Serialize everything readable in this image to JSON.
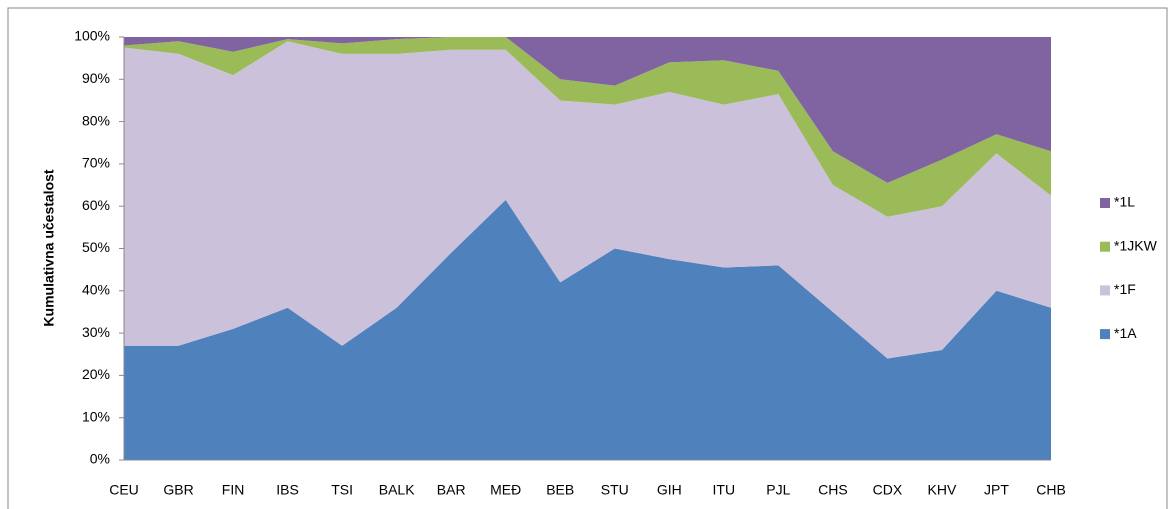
{
  "chart_data": {
    "type": "stacked_area",
    "y_axis_label": "Kumulativna učestalost",
    "categories": [
      "CEU",
      "GBR",
      "FIN",
      "IBS",
      "TSI",
      "BALK",
      "BAR",
      "MEĐ",
      "BEB",
      "STU",
      "GIH",
      "ITU",
      "PJL",
      "CHS",
      "CDX",
      "KHV",
      "JPT",
      "CHB"
    ],
    "series": [
      {
        "name": "*1A",
        "color": "#4f81bd",
        "values": [
          27,
          27,
          31,
          36,
          27,
          36,
          49,
          61.5,
          42,
          50,
          47.5,
          45.5,
          46,
          35,
          24,
          26,
          40,
          36
        ]
      },
      {
        "name": "*1F",
        "color": "#ccc1da",
        "values": [
          70.5,
          69,
          60,
          63,
          69,
          60,
          48,
          35.5,
          43,
          34,
          39.5,
          38.5,
          40.5,
          30,
          33.5,
          34,
          32.5,
          26.5
        ]
      },
      {
        "name": "*1JKW",
        "color": "#9bbb59",
        "values": [
          0.5,
          3,
          5.5,
          0.5,
          2.5,
          3.5,
          3,
          3,
          5,
          4.5,
          7,
          10.5,
          5.5,
          8,
          8,
          11,
          4.5,
          10.5
        ]
      },
      {
        "name": "*1L",
        "color": "#8064a2",
        "values": [
          2,
          1,
          3.5,
          0.5,
          1.5,
          0.5,
          0,
          0,
          10,
          11.5,
          6,
          5.5,
          8,
          27,
          34.5,
          29,
          23,
          27
        ]
      }
    ],
    "ylim": [
      0,
      100
    ],
    "yticks": [
      {
        "value": 0,
        "label": "0%"
      },
      {
        "value": 10,
        "label": "10%"
      },
      {
        "value": 20,
        "label": "20%"
      },
      {
        "value": 30,
        "label": "30%"
      },
      {
        "value": 40,
        "label": "40%"
      },
      {
        "value": 50,
        "label": "50%"
      },
      {
        "value": 60,
        "label": "60%"
      },
      {
        "value": 70,
        "label": "70%"
      },
      {
        "value": 80,
        "label": "80%"
      },
      {
        "value": 90,
        "label": "90%"
      },
      {
        "value": 100,
        "label": "100%"
      }
    ],
    "legend": "right"
  }
}
